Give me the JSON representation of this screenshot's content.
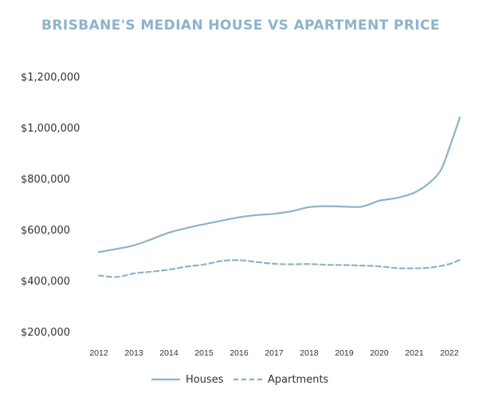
{
  "chart_data": {
    "type": "line",
    "title": "BRISBANE'S MEDIAN HOUSE VS APARTMENT PRICE",
    "xlabel": "",
    "ylabel": "",
    "x_ticks": [
      "2012",
      "2013",
      "2014",
      "2015",
      "2016",
      "2017",
      "2018",
      "2019",
      "2020",
      "2021",
      "2022"
    ],
    "xlim": [
      2012,
      2022.4
    ],
    "ylim": [
      200000,
      1200000
    ],
    "y_ticks": [
      200000,
      400000,
      600000,
      800000,
      1000000,
      1200000
    ],
    "y_tick_labels": [
      "$200,000",
      "$400,000",
      "$600,000",
      "$800,000",
      "$1,000,000",
      "$1,200,000"
    ],
    "grid": false,
    "legend_position": "bottom-center",
    "colors": {
      "line": "#8db3cc",
      "title": "#8db3cc",
      "text": "#333333"
    },
    "series": [
      {
        "name": "Houses",
        "style": "solid",
        "points": [
          [
            2012,
            512000
          ],
          [
            2012.5,
            524000
          ],
          [
            2013,
            538000
          ],
          [
            2013.5,
            562000
          ],
          [
            2014,
            588000
          ],
          [
            2014.5,
            606000
          ],
          [
            2015,
            621000
          ],
          [
            2015.5,
            635000
          ],
          [
            2016,
            648000
          ],
          [
            2016.5,
            657000
          ],
          [
            2017,
            662000
          ],
          [
            2017.5,
            672000
          ],
          [
            2018,
            688000
          ],
          [
            2018.5,
            692000
          ],
          [
            2019,
            690000
          ],
          [
            2019.5,
            690000
          ],
          [
            2020,
            713000
          ],
          [
            2020.5,
            724000
          ],
          [
            2021,
            745000
          ],
          [
            2021.4,
            780000
          ],
          [
            2021.75,
            832000
          ],
          [
            2022,
            920000
          ],
          [
            2022.3,
            1040000
          ]
        ]
      },
      {
        "name": "Apartments",
        "style": "dashed",
        "points": [
          [
            2012,
            420000
          ],
          [
            2012.5,
            414000
          ],
          [
            2013,
            428000
          ],
          [
            2013.5,
            435000
          ],
          [
            2014,
            443000
          ],
          [
            2014.5,
            455000
          ],
          [
            2015,
            463000
          ],
          [
            2015.5,
            477000
          ],
          [
            2016,
            480000
          ],
          [
            2016.5,
            473000
          ],
          [
            2017,
            466000
          ],
          [
            2017.5,
            464000
          ],
          [
            2018,
            465000
          ],
          [
            2018.5,
            462000
          ],
          [
            2019,
            461000
          ],
          [
            2019.5,
            459000
          ],
          [
            2020,
            456000
          ],
          [
            2020.5,
            449000
          ],
          [
            2021,
            448000
          ],
          [
            2021.5,
            452000
          ],
          [
            2022,
            465000
          ],
          [
            2022.3,
            482000
          ]
        ]
      }
    ]
  }
}
